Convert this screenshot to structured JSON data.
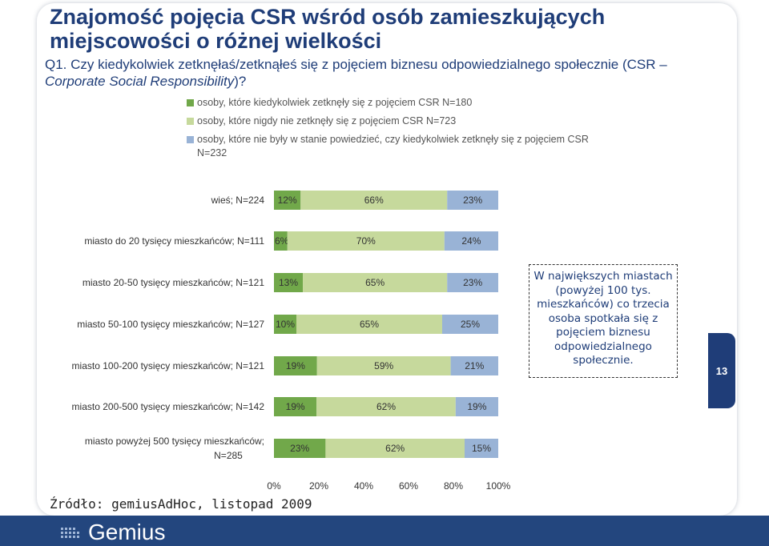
{
  "slide": {
    "title": "Znajomość pojęcia CSR wśród osób zamieszkujących miejscowości o różnej wielkości",
    "question_prefix": "Q1. Czy kiedykolwiek zetknęłaś/zetknąłeś się z pojęciem biznesu odpowiedzialnego społecznie (CSR – ",
    "question_italic": "Corporate Social Responsibility",
    "question_suffix": ")?",
    "note": "W największych miastach (powyżej 100 tys. mieszkańców) co trzecia osoba spotkała się z pojęciem biznesu odpowiedzialnego społecznie.",
    "source": "Źródło: gemiusAdHoc, listopad 2009",
    "page_number": "13",
    "logo_text": "Gemius"
  },
  "colors": {
    "title": "#1f3d78",
    "series": [
      "#71a84a",
      "#c6d99c",
      "#99b3d6"
    ],
    "footer": "#23467e"
  },
  "chart_data": {
    "type": "bar",
    "orientation": "horizontal",
    "stacked": true,
    "percent": true,
    "categories": [
      "wieś; N=224",
      "miasto do 20  tysięcy mieszkańców; N=111",
      "miasto 20-50  tysięcy mieszkańców; N=121",
      "miasto 50-100  tysięcy mieszkańców; N=127",
      "miasto 100-200  tysięcy mieszkańców; N=121",
      "miasto 200-500  tysięcy mieszkańców; N=142",
      "miasto powyżej  500 tysięcy mieszkańców; N=285"
    ],
    "series": [
      {
        "name": "osoby, które kiedykolwiek zetknęły się z pojęciem CSR N=180",
        "values": [
          12,
          6,
          13,
          10,
          19,
          19,
          23
        ]
      },
      {
        "name": "osoby, które nigdy nie zetknęły się z pojęciem CSR N=723",
        "values": [
          66,
          70,
          65,
          65,
          59,
          62,
          62
        ]
      },
      {
        "name": "osoby, które nie były w stanie powiedzieć, czy kiedykolwiek zetknęły się z pojęciem CSR N=232",
        "values": [
          23,
          24,
          23,
          25,
          21,
          19,
          15
        ]
      }
    ],
    "value_labels": [
      [
        "12%",
        "66%",
        "23%"
      ],
      [
        "6%",
        "70%",
        "24%"
      ],
      [
        "13%",
        "65%",
        "23%"
      ],
      [
        "10%",
        "65%",
        "25%"
      ],
      [
        "19%",
        "59%",
        "21%"
      ],
      [
        "19%",
        "62%",
        "19%"
      ],
      [
        "23%",
        "62%",
        "15%"
      ]
    ],
    "xlim": [
      0,
      100
    ],
    "x_ticks": [
      "0%",
      "20%",
      "40%",
      "60%",
      "80%",
      "100%"
    ],
    "grid": false,
    "legend_position": "top"
  }
}
